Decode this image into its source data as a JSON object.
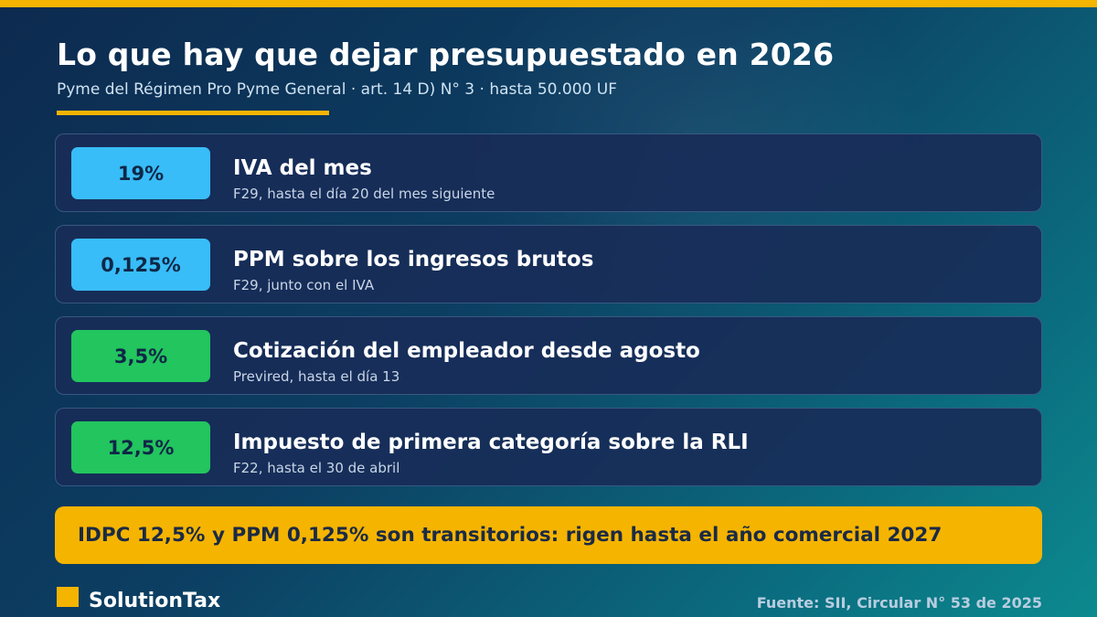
{
  "header": {
    "title": "Lo que hay que dejar presupuestado en 2026",
    "subtitle": "Pyme del Régimen Pro Pyme General · art. 14 D) N° 3 · hasta 50.000 UF"
  },
  "items": [
    {
      "rate": "19%",
      "title": "IVA del mes",
      "detail": "F29, hasta el día 20 del mes siguiente",
      "badge_color": "#38bdf8"
    },
    {
      "rate": "0,125%",
      "title": "PPM sobre los ingresos brutos",
      "detail": "F29, junto con el IVA",
      "badge_color": "#38bdf8"
    },
    {
      "rate": "3,5%",
      "title": "Cotización del empleador desde agosto",
      "detail": "Previred, hasta el día 13",
      "badge_color": "#22c55e"
    },
    {
      "rate": "12,5%",
      "title": "Impuesto de primera categoría sobre la RLI",
      "detail": "F22, hasta el 30 de abril",
      "badge_color": "#22c55e"
    }
  ],
  "notice": "IDPC 12,5% y PPM 0,125% son transitorios: rigen hasta el año comercial 2027",
  "footer": {
    "brand": "SolutionTax",
    "source": "Fuente: SII, Circular N° 53 de 2025"
  },
  "colors": {
    "accent": "#f5b400",
    "card_background": "#182c58",
    "badge_blue": "#38bdf8",
    "badge_green": "#22c55e"
  }
}
